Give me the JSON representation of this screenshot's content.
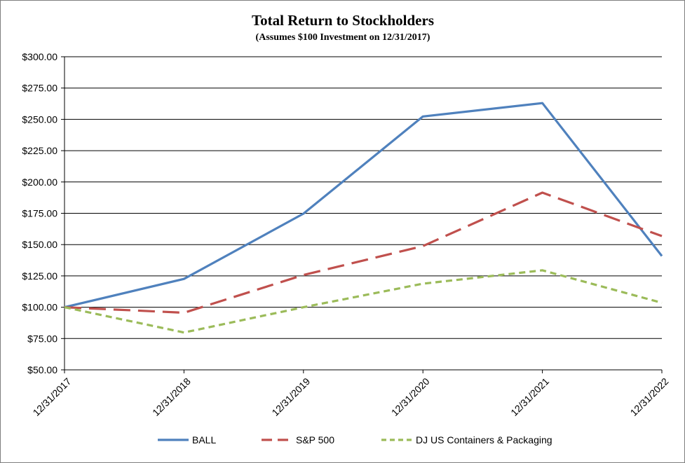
{
  "chart_data": {
    "type": "line",
    "title": "Total Return to Stockholders",
    "subtitle": "(Assumes $100 Investment on 12/31/2017)",
    "xlabel": "",
    "ylabel": "",
    "categories": [
      "12/31/2017",
      "12/31/2018",
      "12/31/2019",
      "12/31/2020",
      "12/31/2021",
      "12/31/2022"
    ],
    "y_ticks": [
      "$50.00",
      "$75.00",
      "$100.00",
      "$125.00",
      "$150.00",
      "$175.00",
      "$200.00",
      "$225.00",
      "$250.00",
      "$275.00",
      "$300.00"
    ],
    "ylim": [
      50,
      300
    ],
    "y_step": 25,
    "grid": "horizontal",
    "legend_position": "bottom",
    "series": [
      {
        "name": "BALL",
        "values": [
          100,
          122.6,
          174.7,
          252.3,
          263.0,
          140.9
        ],
        "color": "#4f81bd",
        "dash": "solid"
      },
      {
        "name": "S&P 500",
        "values": [
          100,
          95.6,
          125.7,
          148.8,
          191.5,
          156.8
        ],
        "color": "#c0504d",
        "dash": "long-dash"
      },
      {
        "name": "DJ US Containers & Packaging",
        "values": [
          100,
          79.8,
          100.0,
          118.8,
          129.5,
          103.5
        ],
        "color": "#9bbb59",
        "dash": "short-dash"
      }
    ]
  }
}
